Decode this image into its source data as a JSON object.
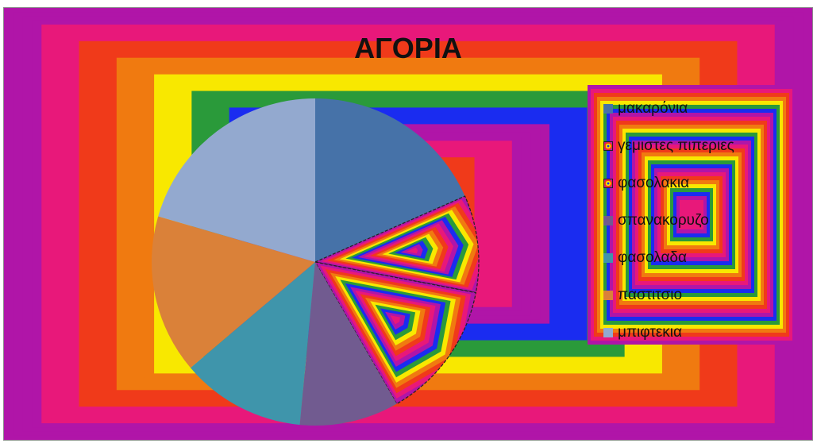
{
  "chart_data": {
    "type": "pie",
    "title": "ΑΓΟΡΙΑ",
    "legend_position": "right",
    "categories": [
      "μακαρόνια",
      "γεμιστες πιπεριες",
      "φασολακια",
      "σπανακορυζο",
      "φασολαδα",
      "παστιτσιο",
      "μπιφτεκια"
    ],
    "values": [
      18.4,
      9.6,
      13.7,
      9.8,
      12.3,
      15.7,
      20.5
    ],
    "colors": [
      "#4672a8",
      "rainbow",
      "rainbow",
      "#715b90",
      "#3f95ab",
      "#da8139",
      "#93a9cf"
    ],
    "start_angle_deg": 0,
    "direction": "clockwise"
  },
  "background_colors": [
    "#b015a8",
    "#e8187a",
    "#f03a1a",
    "#f07a10",
    "#f8e800",
    "#2a9a3a",
    "#1a2cf0"
  ],
  "legend_swatch_icons": [
    "square-swatch-icon",
    "rainbow-swatch-icon",
    "rainbow-swatch-icon",
    "square-swatch-icon",
    "square-swatch-icon",
    "square-swatch-icon",
    "square-swatch-icon"
  ]
}
